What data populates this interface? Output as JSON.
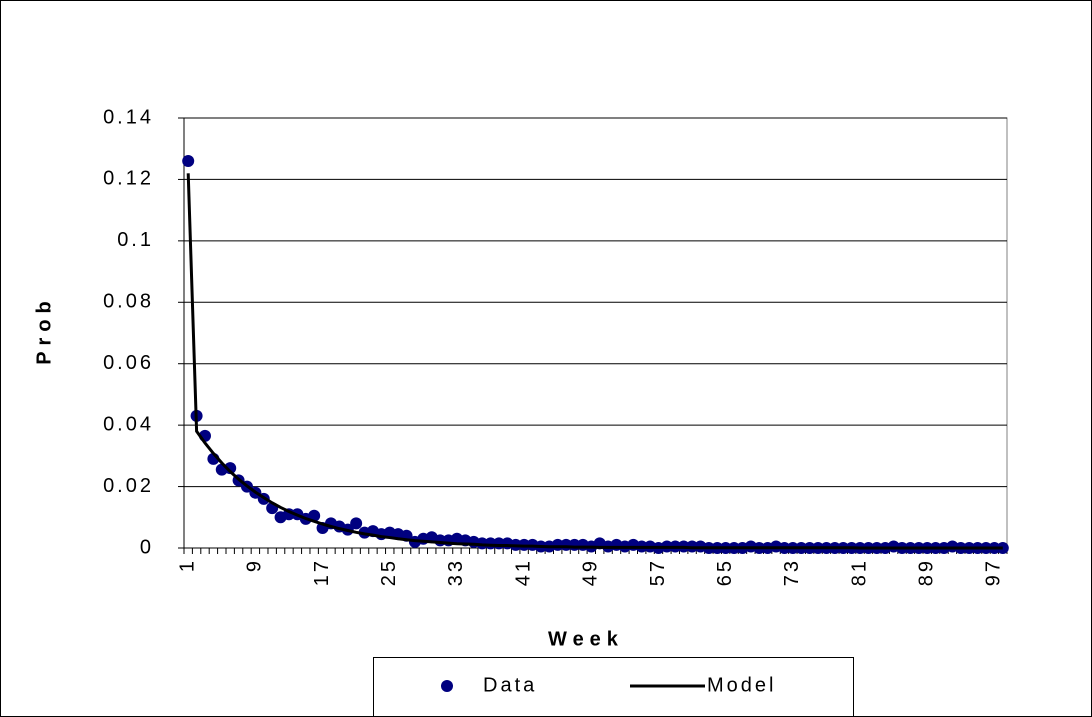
{
  "chart_data": {
    "type": "line",
    "y_label": "Prob",
    "x_label": "Week",
    "categories": [
      "1",
      null,
      null,
      null,
      null,
      null,
      null,
      null,
      "9",
      null,
      null,
      null,
      null,
      null,
      null,
      null,
      "17",
      null,
      null,
      null,
      null,
      null,
      null,
      null,
      "25",
      null,
      null,
      null,
      null,
      null,
      null,
      null,
      "33",
      null,
      null,
      null,
      null,
      null,
      null,
      null,
      "41",
      null,
      null,
      null,
      null,
      null,
      null,
      null,
      "49",
      null,
      null,
      null,
      null,
      null,
      null,
      null,
      "57",
      null,
      null,
      null,
      null,
      null,
      null,
      null,
      "65",
      null,
      null,
      null,
      null,
      null,
      null,
      null,
      "73",
      null,
      null,
      null,
      null,
      null,
      null,
      null,
      "81",
      null,
      null,
      null,
      null,
      null,
      null,
      null,
      "89",
      null,
      null,
      null,
      null,
      null,
      null,
      null,
      "97",
      null
    ],
    "series": [
      {
        "name": "Data",
        "color": "#000080",
        "mode": "markers",
        "values": [
          0.126,
          0.043,
          0.0365,
          0.029,
          0.0255,
          0.026,
          0.022,
          0.02,
          0.018,
          0.016,
          0.013,
          0.01,
          0.011,
          0.011,
          0.0095,
          0.0105,
          0.0065,
          0.008,
          0.007,
          0.006,
          0.008,
          0.005,
          0.0055,
          0.0045,
          0.005,
          0.0045,
          0.004,
          0.002,
          0.003,
          0.0035,
          0.0025,
          0.0025,
          0.003,
          0.0025,
          0.002,
          0.0015,
          0.0015,
          0.0015,
          0.0015,
          0.001,
          0.001,
          0.001,
          0.0005,
          0.0005,
          0.001,
          0.001,
          0.001,
          0.001,
          0.0005,
          0.0015,
          0.0005,
          0.001,
          0.0005,
          0.001,
          0.0005,
          0.0005,
          0,
          0.0005,
          0.0005,
          0.0005,
          0.0005,
          0.0005,
          0,
          0,
          0,
          0,
          0,
          0.0005,
          0,
          0,
          0.0005,
          0,
          0,
          0,
          0,
          0,
          0,
          0,
          0,
          0,
          0,
          0,
          0,
          0,
          0.0005,
          0,
          0,
          0,
          0,
          0,
          0,
          0.0005,
          0,
          0,
          0,
          0,
          0,
          0
        ]
      },
      {
        "name": "Model",
        "color": "#000000",
        "mode": "line",
        "values": [
          0.122,
          0.038,
          0.0342,
          0.0308,
          0.0277,
          0.0249,
          0.0224,
          0.0202,
          0.0182,
          0.0164,
          0.0147,
          0.0132,
          0.0119,
          0.0107,
          0.0096,
          0.0087,
          0.0078,
          0.007,
          0.0063,
          0.0057,
          0.0051,
          0.0046,
          0.0042,
          0.0037,
          0.0034,
          0.003,
          0.0027,
          0.0024,
          0.0022,
          0.002,
          0.0018,
          0.0016,
          0.0014,
          0.0013,
          0.0012,
          0.001,
          0.0009,
          0.0008,
          0.0008,
          0.0007,
          0.0006,
          0.0006,
          0.0005,
          0.0004,
          0.0004,
          0.0004,
          0.0003,
          0.0003,
          0.0003,
          0.0002,
          0.0002,
          0.0002,
          0.0002,
          0.0002,
          0.0002,
          0.0002,
          0.0002,
          0.0002,
          0.0002,
          0.0002,
          0.0001,
          0.0001,
          0.0001,
          0.0001,
          0.0001,
          0.0001,
          0.0001,
          0.0001,
          0.0001,
          0.0001,
          0.0001,
          0.0001,
          0.0001,
          0.0001,
          0.0001,
          0.0001,
          0.0001,
          0.0001,
          0.0001,
          0.0001,
          0,
          0,
          0,
          0,
          0,
          0,
          0,
          0,
          0,
          0,
          0,
          0,
          0,
          0,
          0,
          0,
          0,
          0
        ]
      }
    ],
    "ylim": [
      0,
      0.14
    ],
    "yticks": [
      0,
      0.02,
      0.04,
      0.06,
      0.08,
      0.1,
      0.12,
      0.14
    ],
    "grid": true,
    "legend": "bottom"
  }
}
